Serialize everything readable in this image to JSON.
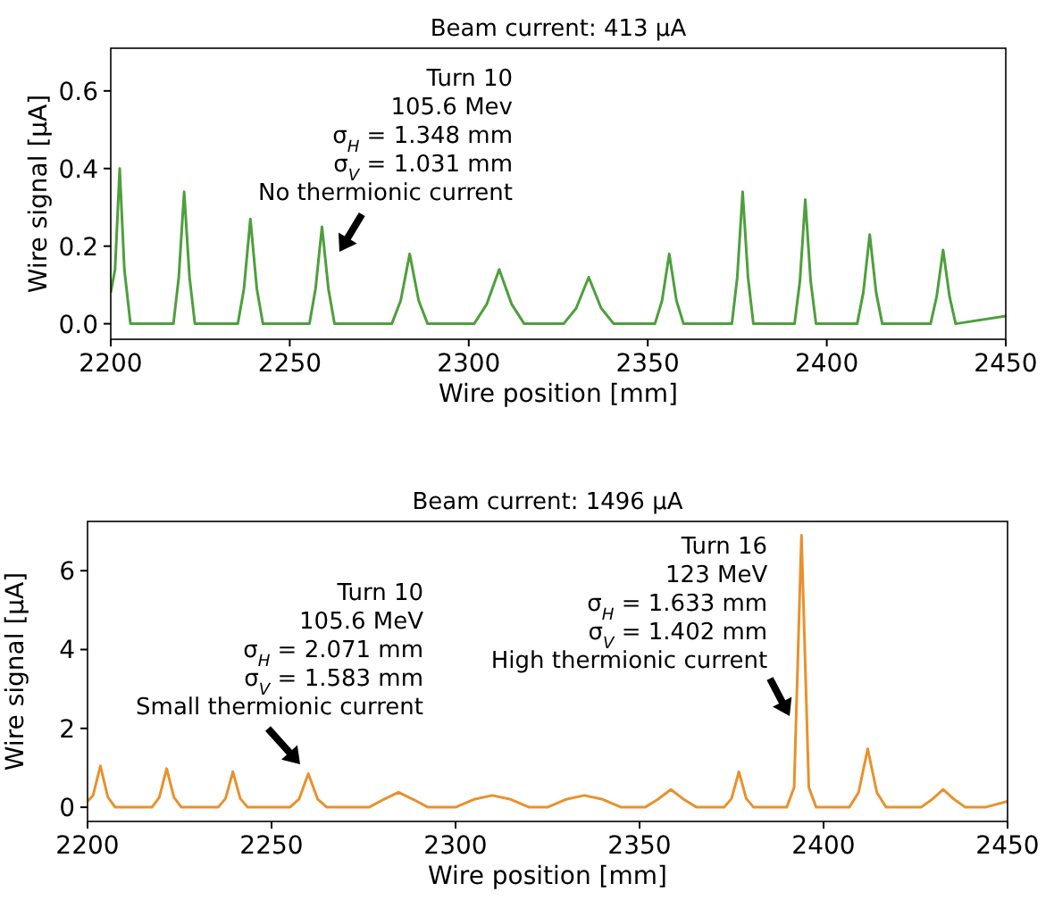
{
  "chart_data": [
    {
      "type": "line",
      "title": "Beam current: 413 μA",
      "xlabel": "Wire position [mm]",
      "ylabel": "Wire signal [μA]",
      "xlim": [
        2200,
        2450
      ],
      "ylim": [
        -0.04,
        0.71
      ],
      "xticks": [
        2200,
        2250,
        2300,
        2350,
        2400,
        2450
      ],
      "yticks": [
        {
          "value": 0,
          "label": "0.0"
        },
        {
          "value": 0.2,
          "label": "0.2"
        },
        {
          "value": 0.4,
          "label": "0.4"
        },
        {
          "value": 0.6,
          "label": "0.6"
        }
      ],
      "annotations": [
        "Turn 10",
        "105.6 Mev",
        "σ$_{H}$ = 1.348 mm",
        "σ$_{V}$ = 1.031 mm",
        "No thermionic current"
      ],
      "series": [
        {
          "color": "#4e9f3d",
          "x": [
            2200,
            2201.2,
            2202.5,
            2203.8,
            2205.5,
            2217.5,
            2219,
            2220.5,
            2222,
            2223.5,
            2235.5,
            2237.2,
            2239,
            2240.8,
            2242.5,
            2255.5,
            2257.2,
            2259,
            2260.8,
            2262.5,
            2278.5,
            2281,
            2283.5,
            2286,
            2288.5,
            2301.5,
            2305,
            2308.5,
            2312,
            2315.5,
            2326.5,
            2330,
            2333.5,
            2337,
            2340.5,
            2352,
            2354,
            2356,
            2358,
            2360,
            2373.5,
            2375,
            2376.5,
            2378,
            2379.5,
            2391,
            2392.5,
            2394,
            2395.5,
            2397,
            2408.5,
            2410.2,
            2412,
            2413.8,
            2415.5,
            2429,
            2430.7,
            2432.5,
            2434.3,
            2436,
            2450
          ],
          "values": [
            0.08,
            0.14,
            0.4,
            0.14,
            0,
            0,
            0.12,
            0.34,
            0.12,
            0,
            0,
            0.09,
            0.27,
            0.09,
            0,
            0,
            0.09,
            0.25,
            0.09,
            0,
            0,
            0.06,
            0.18,
            0.06,
            0,
            0,
            0.05,
            0.14,
            0.05,
            0,
            0,
            0.04,
            0.12,
            0.04,
            0,
            0,
            0.06,
            0.18,
            0.06,
            0,
            0,
            0.12,
            0.34,
            0.12,
            0,
            0,
            0.11,
            0.32,
            0.11,
            0,
            0,
            0.08,
            0.23,
            0.08,
            0,
            0,
            0.07,
            0.19,
            0.07,
            0,
            0.02
          ]
        }
      ]
    },
    {
      "type": "line",
      "title": "Beam current: 1496 μA",
      "xlabel": "Wire position [mm]",
      "ylabel": "Wire signal [μA]",
      "xlim": [
        2200,
        2450
      ],
      "ylim": [
        -0.36,
        7.25
      ],
      "xticks": [
        2200,
        2250,
        2300,
        2350,
        2400,
        2450
      ],
      "yticks": [
        0,
        2,
        4,
        6
      ],
      "annotations": [
        "Turn 10",
        "105.6 MeV",
        "σ$_{H}$ = 2.071 mm",
        "σ$_{V}$ = 1.583 mm",
        "Small thermionic current",
        "Turn 16",
        "123 MeV",
        "σ$_{H}$ = 1.633 mm",
        "σ$_{V}$ = 1.402 mm",
        "High thermionic current"
      ],
      "series": [
        {
          "color": "#e8912d",
          "x": [
            2200,
            2201.5,
            2203.5,
            2205.5,
            2207.5,
            2217.5,
            2219.5,
            2221.5,
            2223.5,
            2225.5,
            2235.5,
            2237.5,
            2239.5,
            2241.5,
            2243.5,
            2255,
            2257.5,
            2260,
            2262.5,
            2265,
            2276.5,
            2280.5,
            2284.5,
            2288.5,
            2292.5,
            2300,
            2305,
            2310,
            2315,
            2320,
            2325,
            2330,
            2335,
            2340,
            2345,
            2351.5,
            2355,
            2358.5,
            2362,
            2365.5,
            2373,
            2375,
            2377,
            2379,
            2381,
            2390,
            2392,
            2394,
            2396,
            2398,
            2407,
            2409.5,
            2412,
            2414.5,
            2417,
            2426.5,
            2429.5,
            2432.5,
            2435.5,
            2438.5,
            2444,
            2450
          ],
          "values": [
            0.15,
            0.3,
            1.05,
            0.26,
            0,
            0,
            0.25,
            0.98,
            0.25,
            0,
            0,
            0.22,
            0.9,
            0.22,
            0,
            0,
            0.21,
            0.85,
            0.21,
            0,
            0,
            0.2,
            0.38,
            0.2,
            0,
            0,
            0.2,
            0.3,
            0.2,
            0,
            0,
            0.2,
            0.3,
            0.2,
            0,
            0,
            0.2,
            0.45,
            0.2,
            0,
            0,
            0.22,
            0.9,
            0.22,
            0,
            0,
            0.5,
            6.9,
            0.5,
            0,
            0,
            0.37,
            1.48,
            0.37,
            0,
            0,
            0.2,
            0.45,
            0.2,
            0,
            0,
            0.15
          ]
        }
      ]
    }
  ]
}
